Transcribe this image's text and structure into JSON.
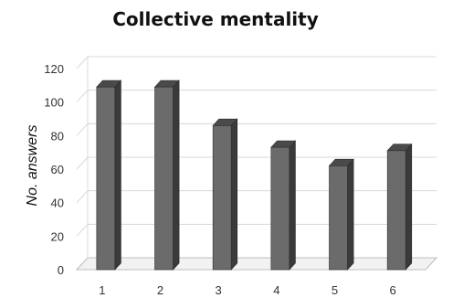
{
  "chart_data": {
    "type": "bar",
    "title": "Collective mentality",
    "xlabel": "",
    "ylabel": "No. answers",
    "categories": [
      "1",
      "2",
      "3",
      "4",
      "5",
      "6"
    ],
    "values": [
      109,
      109,
      86,
      73,
      62,
      71
    ],
    "ylim": [
      0,
      120
    ],
    "yticks": [
      0,
      20,
      40,
      60,
      80,
      100,
      120
    ],
    "grid": true,
    "legend": "none",
    "style": "3d-column",
    "colors": {
      "bar_front": "#6b6b6b",
      "bar_side": "#3a3a3a",
      "bar_top": "#4a4a4a",
      "grid": "#d8d8d8",
      "floor": "#bdbdbd"
    }
  }
}
